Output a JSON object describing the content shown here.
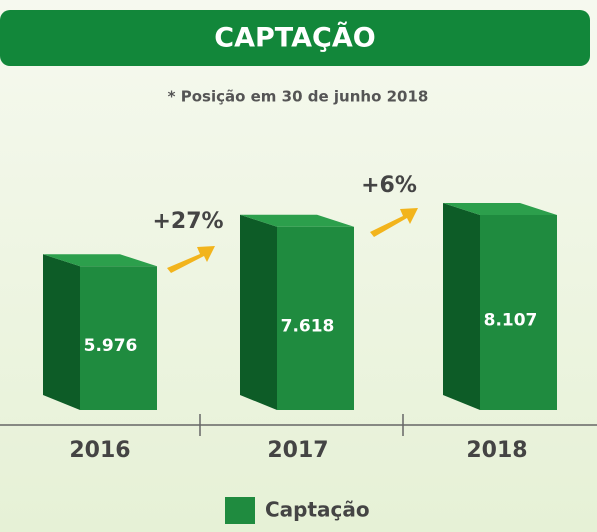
{
  "chart_data": {
    "type": "bar3d",
    "title": "CAPTAÇÃO",
    "subtitle": "* Posição em 30 de junho 2018",
    "categories": [
      "2016",
      "2017",
      "2018"
    ],
    "series": [
      {
        "name": "Captação",
        "color": "#1f8b3f",
        "values": [
          5976,
          7618,
          8107
        ],
        "value_labels": [
          "5.976",
          "7.618",
          "8.107"
        ]
      }
    ],
    "annotations": [
      "+27%",
      "+6%"
    ]
  }
}
